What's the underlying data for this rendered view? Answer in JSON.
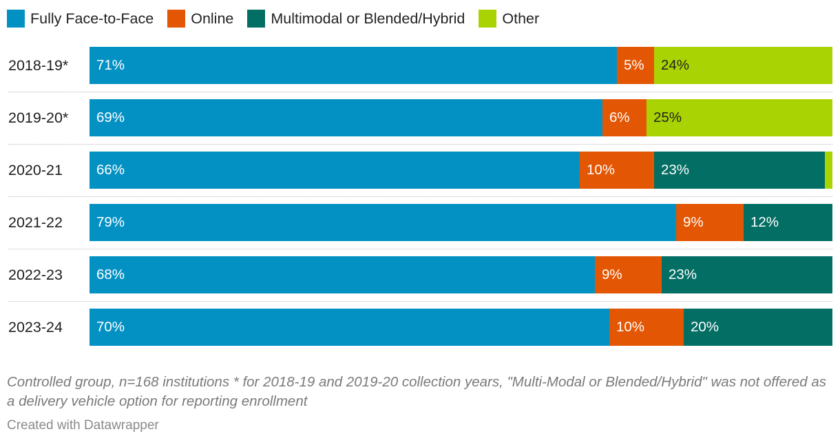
{
  "chart_data": {
    "type": "bar",
    "orientation": "horizontal",
    "stacked": true,
    "categories": [
      "2018-19*",
      "2019-20*",
      "2020-21",
      "2021-22",
      "2022-23",
      "2023-24"
    ],
    "series": [
      {
        "name": "Fully Face-to-Face",
        "color": "#0391c4",
        "values": [
          71,
          69,
          66,
          79,
          68,
          70
        ],
        "labels": [
          "71%",
          "69%",
          "66%",
          "79%",
          "68%",
          "70%"
        ]
      },
      {
        "name": "Online",
        "color": "#e35603",
        "values": [
          5,
          6,
          10,
          9,
          9,
          10
        ],
        "labels": [
          "5%",
          "6%",
          "10%",
          "9%",
          "9%",
          "10%"
        ]
      },
      {
        "name": "Multimodal or Blended/Hybrid",
        "color": "#036e64",
        "values": [
          0,
          0,
          23,
          12,
          23,
          20
        ],
        "labels": [
          "",
          "",
          "23%",
          "12%",
          "23%",
          "20%"
        ]
      },
      {
        "name": "Other",
        "color": "#a9d303",
        "values": [
          24,
          25,
          1,
          0,
          0,
          0
        ],
        "labels": [
          "24%",
          "25%",
          "",
          "",
          "",
          ""
        ]
      }
    ],
    "legend": "top-left",
    "xlim": [
      0,
      100
    ],
    "grid": false
  },
  "footnote": "Controlled group, n=168 institutions * for 2018-19 and 2019-20 collection years, \"Multi-Modal or Blended/Hybrid\" was not offered as a delivery vehicle option for reporting enrollment",
  "credit": "Created with Datawrapper"
}
